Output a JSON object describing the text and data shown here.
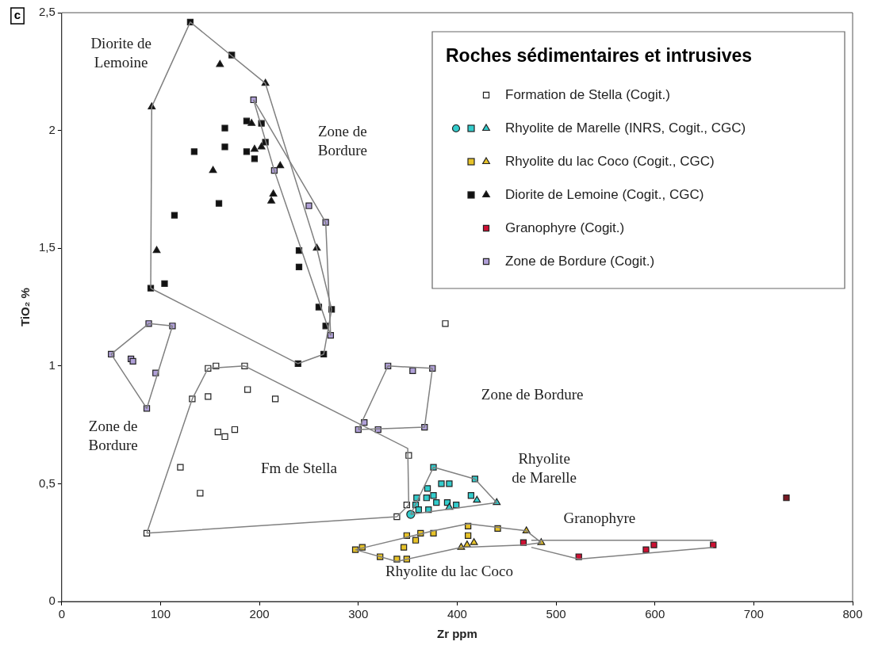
{
  "chart_data": {
    "type": "scatter",
    "xlabel": "Zr ppm",
    "ylabel": "TiO₂ %",
    "legend_title": "Roches sédimentaires et intrusives",
    "legend": "top right",
    "grid": false,
    "xlim": [
      0,
      800
    ],
    "xticks": [
      0,
      100,
      200,
      300,
      400,
      500,
      600,
      700,
      800
    ],
    "ylim": [
      0,
      2.5
    ],
    "yticks": [
      0,
      {
        "value": 0.5,
        "label": "0,5"
      },
      1,
      {
        "value": 1.5,
        "label": "1,5"
      },
      2,
      {
        "value": 2.5,
        "label": "2,5"
      }
    ],
    "annotations": [
      "c",
      "Diorite de\nLemoine",
      "Zone de\nBordure",
      "Zone de\nBordure",
      "Zone de Bordure",
      "Fm de Stella",
      "Rhyolite\nde Marelle",
      "Granophyre",
      "Rhyolite du lac Coco"
    ],
    "series": [
      {
        "type": "line",
        "marker": "none",
        "color": "#808080",
        "x": [
          90,
          91,
          130,
          206,
          258,
          273
        ],
        "values": [
          1.33,
          2.1,
          2.46,
          2.2,
          1.5,
          1.24
        ]
      },
      {
        "type": "line",
        "marker": "none",
        "color": "#808080",
        "x": [
          90,
          239,
          265,
          273
        ],
        "values": [
          1.33,
          1.01,
          1.05,
          1.24
        ]
      },
      {
        "type": "line",
        "marker": "none",
        "color": "#808080",
        "x": [
          194,
          267,
          272
        ],
        "values": [
          2.13,
          1.61,
          1.13
        ]
      },
      {
        "type": "line",
        "marker": "none",
        "color": "#808080",
        "x": [
          194,
          215,
          272
        ],
        "values": [
          2.13,
          1.83,
          1.13
        ]
      },
      {
        "type": "line",
        "marker": "none",
        "color": "#808080",
        "x": [
          50,
          88,
          112
        ],
        "values": [
          1.05,
          1.18,
          1.17
        ]
      },
      {
        "type": "line",
        "marker": "none",
        "color": "#808080",
        "x": [
          50,
          86,
          112
        ],
        "values": [
          1.05,
          0.82,
          1.17
        ]
      },
      {
        "type": "line",
        "marker": "none",
        "color": "#808080",
        "x": [
          300,
          330,
          375
        ],
        "values": [
          0.73,
          1.0,
          0.99
        ]
      },
      {
        "type": "line",
        "marker": "none",
        "color": "#808080",
        "x": [
          300,
          367,
          375
        ],
        "values": [
          0.73,
          0.74,
          0.99
        ]
      },
      {
        "type": "line",
        "marker": "none",
        "color": "#808080",
        "x": [
          86,
          132,
          148,
          185,
          350,
          351
        ],
        "values": [
          0.29,
          0.86,
          0.99,
          1.0,
          0.65,
          0.41
        ]
      },
      {
        "type": "line",
        "marker": "none",
        "color": "#808080",
        "x": [
          86,
          339,
          351
        ],
        "values": [
          0.29,
          0.36,
          0.41
        ]
      },
      {
        "type": "line",
        "marker": "none",
        "color": "#808080",
        "x": [
          353,
          376,
          418,
          440
        ],
        "values": [
          0.37,
          0.57,
          0.52,
          0.42
        ]
      },
      {
        "type": "line",
        "marker": "none",
        "color": "#808080",
        "x": [
          353,
          440
        ],
        "values": [
          0.37,
          0.42
        ]
      },
      {
        "type": "line",
        "marker": "none",
        "color": "#808080",
        "x": [
          297,
          376,
          411,
          470,
          485
        ],
        "values": [
          0.22,
          0.3,
          0.33,
          0.3,
          0.25
        ]
      },
      {
        "type": "line",
        "marker": "none",
        "color": "#808080",
        "x": [
          297,
          339,
          404,
          467,
          485
        ],
        "values": [
          0.22,
          0.17,
          0.23,
          0.24,
          0.25
        ]
      },
      {
        "type": "line",
        "marker": "none",
        "color": "#808080",
        "x": [
          475,
          659
        ],
        "values": [
          0.26,
          0.26
        ]
      },
      {
        "type": "line",
        "marker": "none",
        "color": "#808080",
        "x": [
          475,
          523,
          659
        ],
        "values": [
          0.23,
          0.18,
          0.23
        ]
      },
      {
        "name": "Formation de Stella (Cogit.)",
        "marker": "square",
        "color": "#ffffff",
        "x": [
          148,
          156,
          185,
          132,
          148,
          188,
          216,
          158,
          165,
          175,
          120,
          140,
          86,
          388,
          351,
          349,
          339
        ],
        "values": [
          0.99,
          1.0,
          1.0,
          0.86,
          0.87,
          0.9,
          0.86,
          0.72,
          0.7,
          0.73,
          0.57,
          0.46,
          0.29,
          1.18,
          0.62,
          0.41,
          0.36
        ]
      },
      {
        "name": "Rhyolite de Marelle (INRS, Cogit., CGC)",
        "marker": "triangle",
        "color": "#33cccc",
        "x": [
          420,
          440,
          392
        ],
        "values": [
          0.43,
          0.42,
          0.4
        ]
      },
      {
        "marker": "square",
        "color": "#33cccc",
        "x": [
          376,
          418,
          384,
          392,
          370,
          376,
          414,
          359,
          369,
          379,
          390,
          399,
          358,
          371,
          361
        ],
        "values": [
          0.57,
          0.52,
          0.5,
          0.5,
          0.48,
          0.45,
          0.45,
          0.44,
          0.44,
          0.42,
          0.42,
          0.41,
          0.41,
          0.39,
          0.39
        ]
      },
      {
        "marker": "circle",
        "color": "#33cccc",
        "x": [
          353
        ],
        "values": [
          0.37
        ]
      },
      {
        "name": "Rhyolite du lac Coco (Cogit., CGC)",
        "marker": "triangle",
        "color": "#e6c229",
        "x": [
          404,
          410,
          417,
          470,
          485
        ],
        "values": [
          0.23,
          0.24,
          0.25,
          0.3,
          0.25
        ]
      },
      {
        "marker": "square",
        "color": "#e6c229",
        "x": [
          297,
          304,
          322,
          339,
          349,
          346,
          349,
          358,
          363,
          376,
          411,
          411,
          441
        ],
        "values": [
          0.22,
          0.23,
          0.19,
          0.18,
          0.18,
          0.23,
          0.28,
          0.26,
          0.29,
          0.29,
          0.32,
          0.28,
          0.31
        ]
      },
      {
        "name": "Diorite de Lemoine (Cogit., CGC)",
        "marker": "triangle",
        "color": "#111111",
        "x": [
          160,
          206,
          91,
          192,
          195,
          202,
          153,
          221,
          214,
          212,
          96,
          258
        ],
        "values": [
          2.28,
          2.2,
          2.1,
          2.03,
          1.92,
          1.93,
          1.83,
          1.85,
          1.73,
          1.7,
          1.49,
          1.5
        ]
      },
      {
        "marker": "square",
        "color": "#111111",
        "x": [
          130,
          172,
          165,
          134,
          165,
          187,
          202,
          206,
          187,
          195,
          159,
          114,
          240,
          240,
          90,
          104,
          239,
          260,
          273,
          267,
          265
        ],
        "values": [
          2.46,
          2.32,
          2.01,
          1.91,
          1.93,
          2.04,
          2.03,
          1.95,
          1.91,
          1.88,
          1.69,
          1.64,
          1.49,
          1.42,
          1.33,
          1.35,
          1.01,
          1.25,
          1.24,
          1.17,
          1.05
        ]
      },
      {
        "name": "Granophyre (Cogit.)",
        "marker": "square",
        "color": "#cc1133",
        "colors": [
          "#cc1133",
          "#cc1133",
          "#cc1133",
          "#cc1133",
          "#cc1133",
          "#7a1a24"
        ],
        "x": [
          467,
          523,
          591,
          599,
          659,
          733
        ],
        "values": [
          0.25,
          0.19,
          0.22,
          0.24,
          0.24,
          0.44
        ]
      },
      {
        "name": "Zone de Bordure (Cogit.)",
        "marker": "square",
        "color": "#b0a0d8",
        "x": [
          194,
          215,
          250,
          267,
          272,
          50,
          70,
          72,
          88,
          112,
          95,
          86,
          300,
          306,
          320,
          330,
          355,
          367,
          375
        ],
        "values": [
          2.13,
          1.83,
          1.68,
          1.61,
          1.13,
          1.05,
          1.03,
          1.02,
          1.18,
          1.17,
          0.97,
          0.82,
          0.73,
          0.76,
          0.73,
          1.0,
          0.98,
          0.74,
          0.99
        ]
      }
    ]
  }
}
